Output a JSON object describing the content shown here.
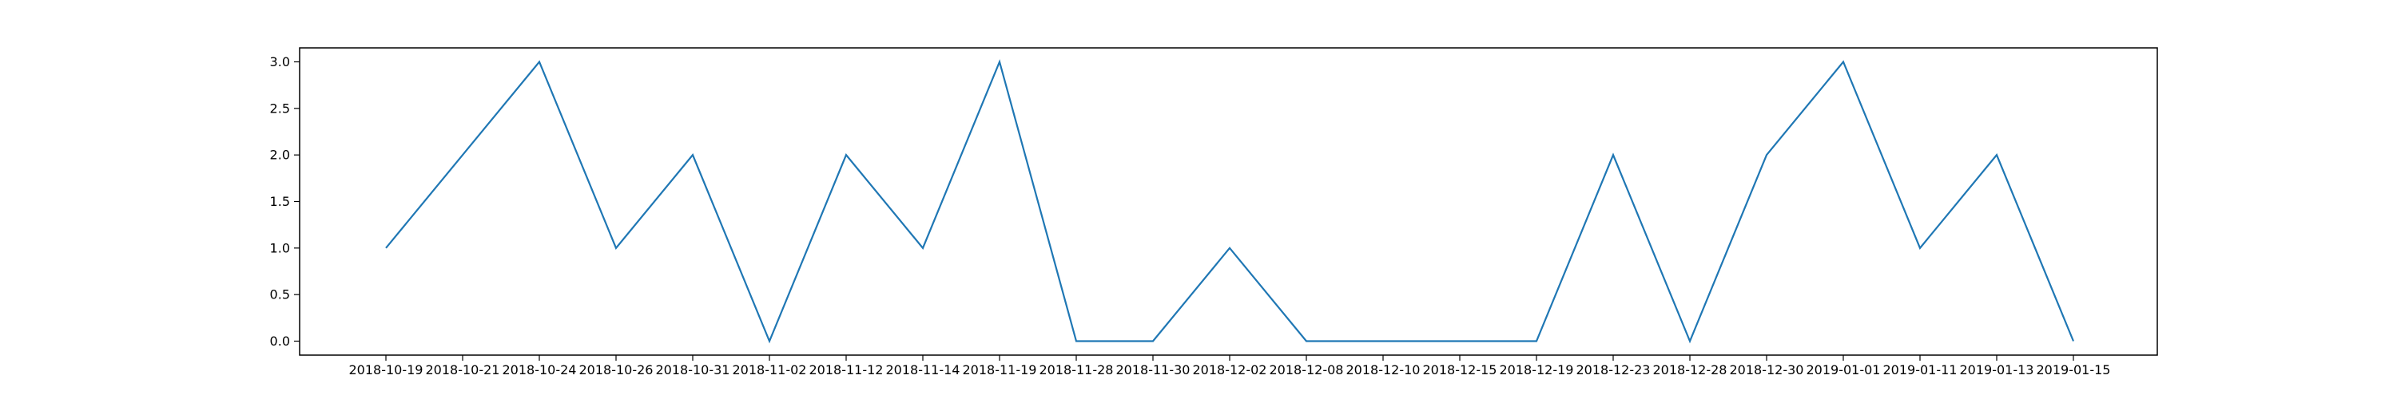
{
  "chart_data": {
    "type": "line",
    "title": "",
    "xlabel": "",
    "ylabel": "",
    "categories": [
      "2018-10-19",
      "2018-10-21",
      "2018-10-24",
      "2018-10-26",
      "2018-10-31",
      "2018-11-02",
      "2018-11-12",
      "2018-11-14",
      "2018-11-19",
      "2018-11-28",
      "2018-11-30",
      "2018-12-02",
      "2018-12-08",
      "2018-12-10",
      "2018-12-15",
      "2018-12-19",
      "2018-12-23",
      "2018-12-28",
      "2018-12-30",
      "2019-01-01",
      "2019-01-11",
      "2019-01-13",
      "2019-01-15"
    ],
    "series": [
      {
        "values": [
          1,
          2,
          3,
          1,
          2,
          0,
          2,
          1,
          3,
          0,
          0,
          1,
          0,
          0,
          0,
          0,
          2,
          0,
          2,
          3,
          1,
          2,
          0
        ]
      }
    ],
    "ylim": [
      -0.15,
      3.15
    ],
    "yticks": [
      0.0,
      0.5,
      1.0,
      1.5,
      2.0,
      2.5,
      3.0
    ],
    "ytick_labels": [
      "0.0",
      "0.5",
      "1.0",
      "1.5",
      "2.0",
      "2.5",
      "3.0"
    ],
    "line_color": "#1f77b4",
    "grid": false,
    "legend": "none"
  }
}
